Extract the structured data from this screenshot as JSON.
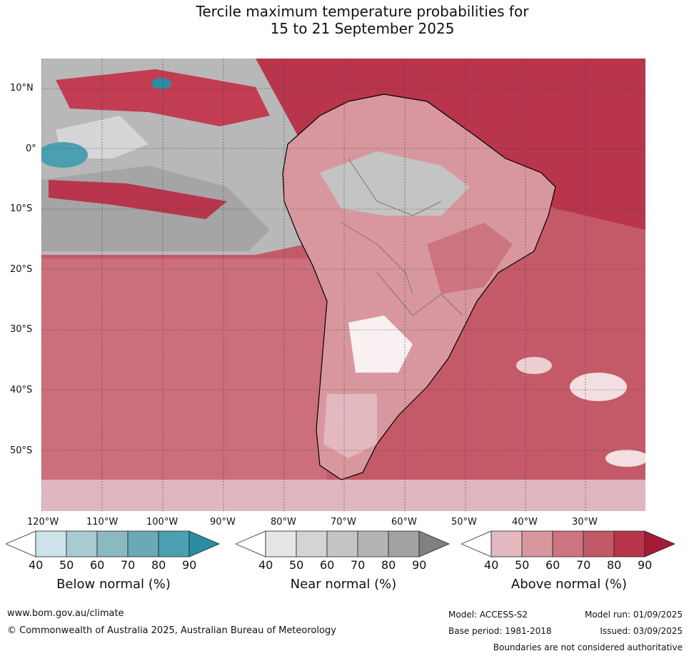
{
  "title_line1": "Tercile maximum temperature probabilities for",
  "title_line2": "15 to 21 September 2025",
  "lat_labels": [
    "10°N",
    "0°",
    "10°S",
    "20°S",
    "30°S",
    "40°S",
    "50°S"
  ],
  "lon_labels": [
    "120°W",
    "110°W",
    "100°W",
    "90°W",
    "80°W",
    "70°W",
    "60°W",
    "50°W",
    "40°W",
    "30°W"
  ],
  "colorbars": [
    {
      "title": "Below normal (%)",
      "ticks": [
        "40",
        "50",
        "60",
        "70",
        "80",
        "90"
      ],
      "colors": [
        "#ffffff",
        "#cde3ea",
        "#a8cbd3",
        "#8bb9c2",
        "#6aa9b7",
        "#4b9fb0",
        "#2a8da0"
      ]
    },
    {
      "title": "Near normal (%)",
      "ticks": [
        "40",
        "50",
        "60",
        "70",
        "80",
        "90"
      ],
      "colors": [
        "#ffffff",
        "#e6e6e6",
        "#d4d4d4",
        "#c4c4c4",
        "#b4b4b4",
        "#a2a2a2",
        "#808080"
      ]
    },
    {
      "title": "Above normal (%)",
      "ticks": [
        "40",
        "50",
        "60",
        "70",
        "80",
        "90"
      ],
      "colors": [
        "#ffffff",
        "#e3b8bf",
        "#d8979f",
        "#cc7480",
        "#c25866",
        "#b8354b",
        "#a51a36"
      ]
    }
  ],
  "footer": {
    "website": "www.bom.gov.au/climate",
    "copyright": "© Commonwealth of Australia 2025, Australian Bureau of Meteorology",
    "model": "Model: ACCESS-S2",
    "base_period": "Base period: 1981-2018",
    "model_run": "Model run: 01/09/2025",
    "issued": "Issued: 03/09/2025",
    "disclaimer": "Boundaries are not considered authoritative"
  }
}
